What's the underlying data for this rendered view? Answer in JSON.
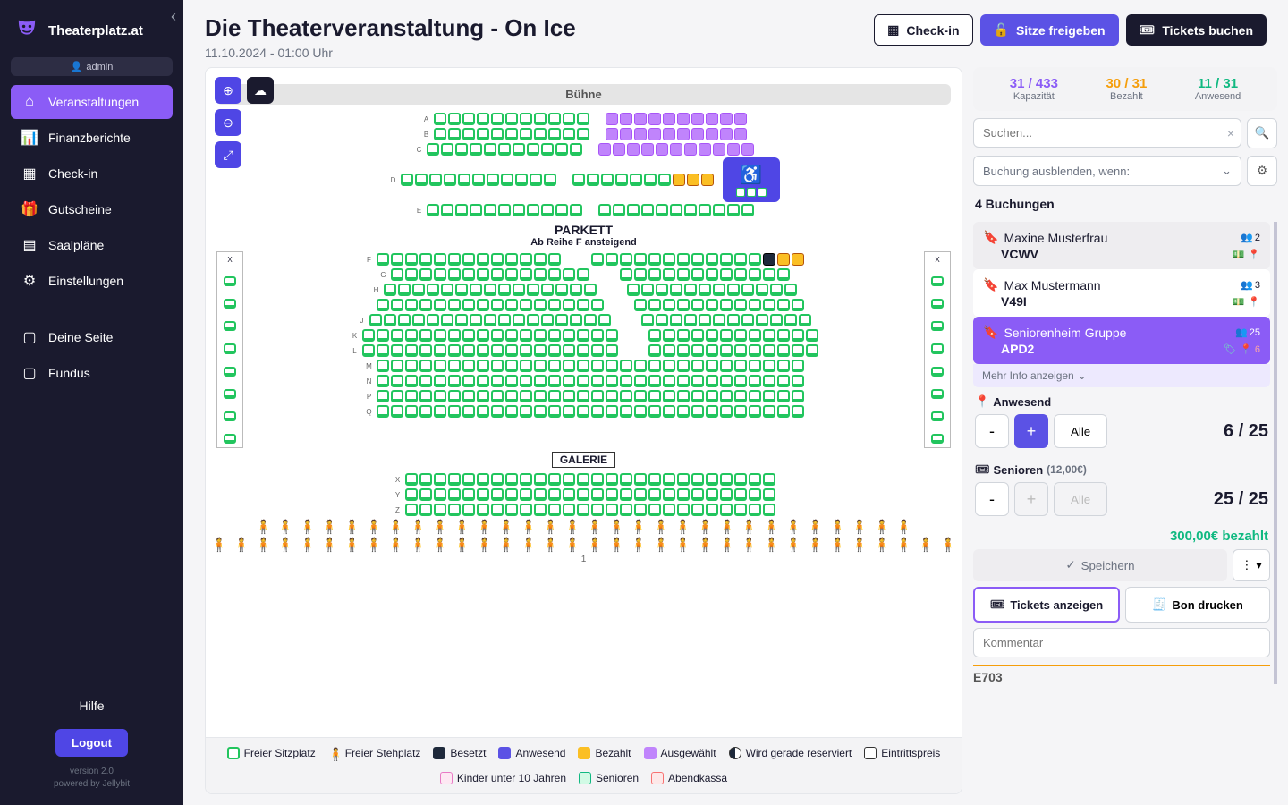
{
  "brand": "Theaterplatz.at",
  "admin_label": "admin",
  "nav": {
    "events": "Veranstaltungen",
    "finance": "Finanzberichte",
    "checkin": "Check-in",
    "vouchers": "Gutscheine",
    "plans": "Saalpläne",
    "settings": "Einstellungen",
    "page": "Deine Seite",
    "fundus": "Fundus"
  },
  "help": "Hilfe",
  "logout": "Logout",
  "version_a": "version 2.0",
  "version_b": "powered by Jellybit",
  "header": {
    "title": "Die Theaterveranstaltung - On Ice",
    "subtitle": "11.10.2024 - 01:00 Uhr",
    "checkin": "Check-in",
    "release": "Sitze freigeben",
    "book": "Tickets buchen"
  },
  "map": {
    "stage": "Bühne",
    "parkett": "PARKETT",
    "parkett_sub": "Ab Reihe F ansteigend",
    "galerie": "GALERIE",
    "row_labels_top": [
      "A",
      "B",
      "C",
      "D",
      "E"
    ],
    "row_labels_mid": [
      "F",
      "G",
      "H",
      "I",
      "J",
      "K",
      "L",
      "M",
      "N",
      "P",
      "Q"
    ],
    "row_labels_gal": [
      "X",
      "Y",
      "Z"
    ],
    "side_x": "X",
    "stand_num": "1"
  },
  "legend": {
    "free": "Freier Sitzplatz",
    "stand": "Freier Stehplatz",
    "occ": "Besetzt",
    "pres": "Anwesend",
    "paid": "Bezahlt",
    "sel": "Ausgewählt",
    "res": "Wird gerade reserviert",
    "price": "Eintrittspreis",
    "kids": "Kinder unter 10 Jahren",
    "seniors": "Senioren",
    "evening": "Abendkassa"
  },
  "stats": {
    "cap_num": "31 / 433",
    "cap_lbl": "Kapazität",
    "paid_num": "30 / 31",
    "paid_lbl": "Bezahlt",
    "pres_num": "11 / 31",
    "pres_lbl": "Anwesend"
  },
  "search_placeholder": "Suchen...",
  "filter_placeholder": "Buchung ausblenden, wenn:",
  "bookings_count": "4 Buchungen",
  "bookings": [
    {
      "name": "Maxine Musterfrau",
      "code": "VCWV",
      "count": "2"
    },
    {
      "name": "Max Mustermann",
      "code": "V49I",
      "count": "3"
    },
    {
      "name": "Seniorenheim Gruppe",
      "code": "APD2",
      "count": "25",
      "pin2": "6"
    }
  ],
  "more_info": "Mehr Info anzeigen",
  "detail": {
    "present_lbl": "Anwesend",
    "all": "Alle",
    "present_count": "6 / 25",
    "seniors_lbl": "Senioren",
    "seniors_price": "(12,00€)",
    "seniors_count": "25 / 25",
    "paid_total": "300,00€ bezahlt",
    "save": "Speichern",
    "show_tickets": "Tickets anzeigen",
    "print_receipt": "Bon drucken",
    "comment_ph": "Kommentar",
    "partial": "E703"
  }
}
